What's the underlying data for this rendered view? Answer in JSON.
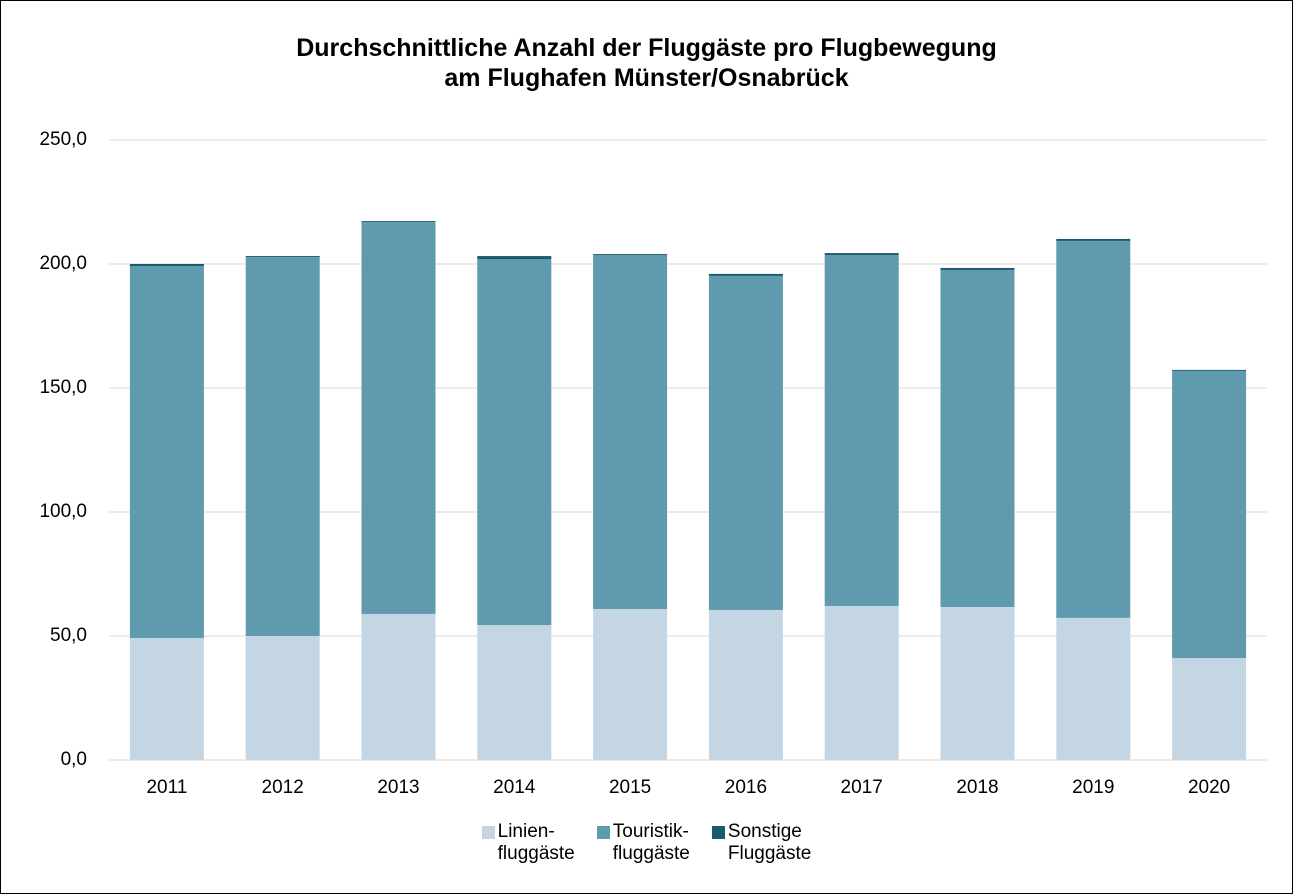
{
  "chart_data": {
    "type": "stacked_bar",
    "title": "Durchschnittliche Anzahl der Fluggäste pro Flugbewegung\nam Flughafen Münster/Osnabrück",
    "categories": [
      "2011",
      "2012",
      "2013",
      "2014",
      "2015",
      "2016",
      "2017",
      "2018",
      "2019",
      "2020"
    ],
    "series": [
      {
        "name": "Linien-\nfluggäste",
        "color": "#c4d6e3",
        "values": [
          49.2,
          50.0,
          58.9,
          54.4,
          60.9,
          60.5,
          62.1,
          61.7,
          57.3,
          41.1
        ]
      },
      {
        "name": "Touristik-\nfluggäste",
        "color": "#5f9aae",
        "values": [
          150.0,
          152.8,
          158.0,
          147.6,
          142.7,
          134.7,
          141.5,
          135.9,
          152.0,
          115.8
        ]
      },
      {
        "name": "Sonstige\nFluggäste",
        "color": "#1a5a6e",
        "values": [
          0.8,
          0.4,
          0.4,
          1.2,
          0.4,
          0.8,
          0.8,
          0.8,
          0.8,
          0.4
        ]
      }
    ],
    "ylim": [
      0,
      250
    ],
    "yticks": [
      {
        "value": 0,
        "label": "0,0"
      },
      {
        "value": 50,
        "label": "50,0"
      },
      {
        "value": 100,
        "label": "100,0"
      },
      {
        "value": 150,
        "label": "150,0"
      },
      {
        "value": 200,
        "label": "200,0"
      },
      {
        "value": 250,
        "label": "250,0"
      }
    ],
    "grid": true,
    "legend": "bottom"
  }
}
